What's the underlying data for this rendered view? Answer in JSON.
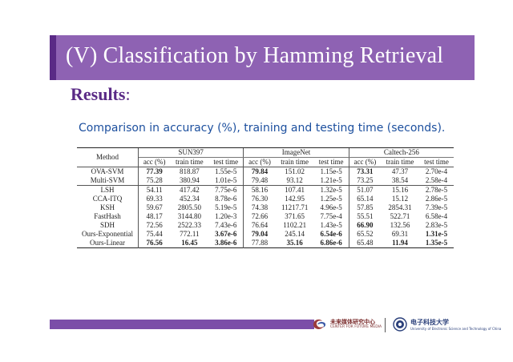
{
  "slide": {
    "title": "(V)  Classification by Hamming Retrieval",
    "section": "Results",
    "section_colon": ":",
    "subtitle": "Comparison in accuracy (%), training and testing time (seconds)."
  },
  "table": {
    "method_header": "Method",
    "groups": [
      "SUN397",
      "ImageNet",
      "Caltech-256"
    ],
    "sub_headers": [
      "acc (%)",
      "train time",
      "test time"
    ],
    "rows_block1": [
      {
        "method": "OVA-SVM",
        "cells": [
          "77.39",
          "818.87",
          "1.55e-5",
          "79.84",
          "151.02",
          "1.15e-5",
          "73.31",
          "47.37",
          "2.70e-4"
        ],
        "bold": [
          0,
          3,
          6
        ]
      },
      {
        "method": "Multi-SVM",
        "cells": [
          "75.28",
          "380.94",
          "1.01e-5",
          "79.48",
          "93.12",
          "1.21e-5",
          "73.25",
          "38.54",
          "2.58e-4"
        ],
        "bold": []
      }
    ],
    "rows_block2": [
      {
        "method": "LSH",
        "cells": [
          "54.11",
          "417.42",
          "7.75e-6",
          "58.16",
          "107.41",
          "1.32e-5",
          "51.07",
          "15.16",
          "2.78e-5"
        ],
        "bold": []
      },
      {
        "method": "CCA-ITQ",
        "cells": [
          "69.33",
          "452.34",
          "8.78e-6",
          "76.30",
          "142.95",
          "1.25e-5",
          "65.14",
          "15.12",
          "2.86e-5"
        ],
        "bold": []
      },
      {
        "method": "KSH",
        "cells": [
          "59.67",
          "2805.50",
          "5.19e-5",
          "74.38",
          "11217.71",
          "4.96e-5",
          "57.85",
          "2854.31",
          "7.39e-5"
        ],
        "bold": []
      },
      {
        "method": "FastHash",
        "cells": [
          "48.17",
          "3144.80",
          "1.20e-3",
          "72.66",
          "371.65",
          "7.75e-4",
          "55.51",
          "522.71",
          "6.58e-4"
        ],
        "bold": []
      },
      {
        "method": "SDH",
        "cells": [
          "72.56",
          "2522.33",
          "7.43e-6",
          "76.64",
          "1102.21",
          "1.43e-5",
          "66.90",
          "132.56",
          "2.83e-5"
        ],
        "bold": [
          6
        ]
      },
      {
        "method": "Ours-Exponential",
        "cells": [
          "75.44",
          "772.11",
          "3.67e-6",
          "79.04",
          "245.14",
          "6.54e-6",
          "65.52",
          "69.31",
          "1.31e-5"
        ],
        "bold": [
          2,
          3,
          5,
          8
        ]
      },
      {
        "method": "Ours-Linear",
        "cells": [
          "76.56",
          "16.45",
          "3.86e-6",
          "77.88",
          "35.16",
          "6.86e-6",
          "65.48",
          "11.94",
          "1.35e-5"
        ],
        "bold": [
          0,
          1,
          2,
          4,
          5,
          7,
          8
        ]
      }
    ]
  },
  "footer": {
    "org1_name": "未来媒体研究中心",
    "org1_sub": "CENTER FOR FUTURE MEDIA",
    "org2_name": "电子科技大学",
    "org2_sub": "University of Electronic Science and Technology of China",
    "colors": {
      "band": "#7b4ea8",
      "title_band": "#8e62b3",
      "accent": "#5a2a86",
      "subtitle": "#1c4f9e"
    }
  }
}
